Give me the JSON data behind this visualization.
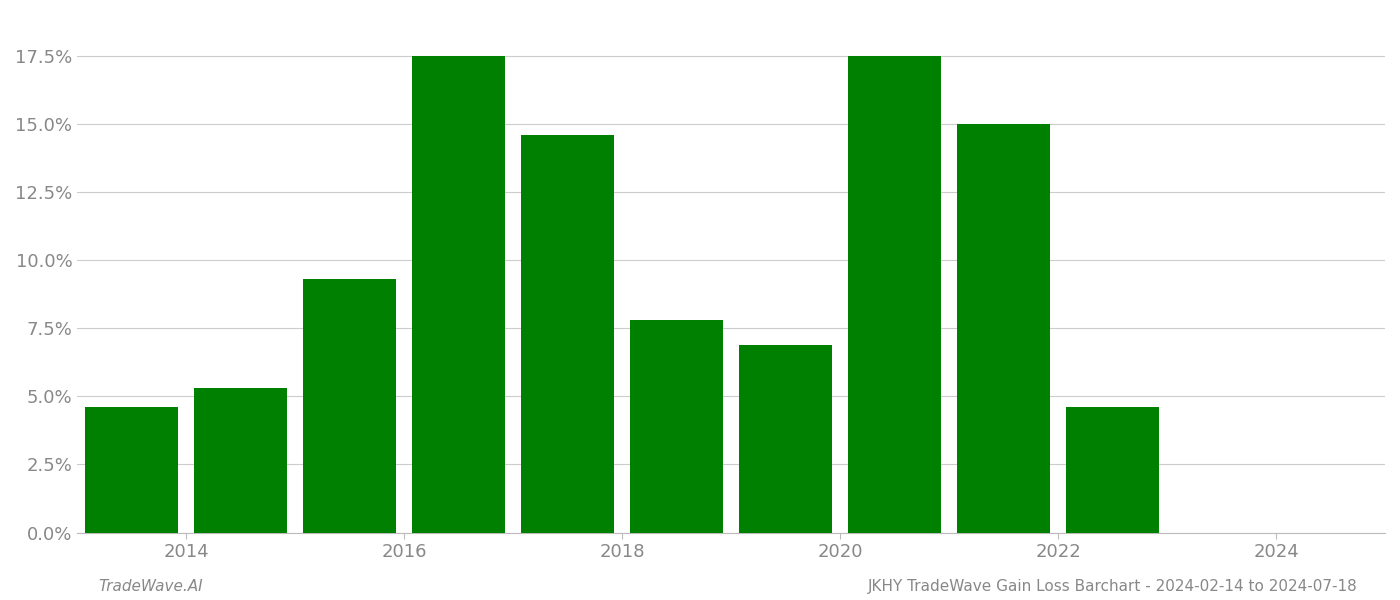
{
  "years": [
    2013.5,
    2014.5,
    2015.5,
    2016.5,
    2017.5,
    2018.5,
    2019.5,
    2020.5,
    2021.5,
    2022.5
  ],
  "values": [
    0.046,
    0.053,
    0.093,
    0.175,
    0.146,
    0.078,
    0.069,
    0.175,
    0.15,
    0.046
  ],
  "bar_color": "#008000",
  "ylabel": "",
  "xlabel": "",
  "ylim": [
    0,
    0.19
  ],
  "yticks": [
    0.0,
    0.025,
    0.05,
    0.075,
    0.1,
    0.125,
    0.15,
    0.175
  ],
  "ytick_labels": [
    "0.0%",
    "2.5%",
    "5.0%",
    "7.5%",
    "10.0%",
    "12.5%",
    "15.0%",
    "17.5%"
  ],
  "xticks": [
    2014,
    2016,
    2018,
    2020,
    2022,
    2024
  ],
  "xlim": [
    2013.0,
    2025.0
  ],
  "footer_left": "TradeWave.AI",
  "footer_right": "JKHY TradeWave Gain Loss Barchart - 2024-02-14 to 2024-07-18",
  "background_color": "#ffffff",
  "grid_color": "#cccccc",
  "bar_width": 0.85,
  "tick_fontsize": 13,
  "footer_fontsize": 11
}
